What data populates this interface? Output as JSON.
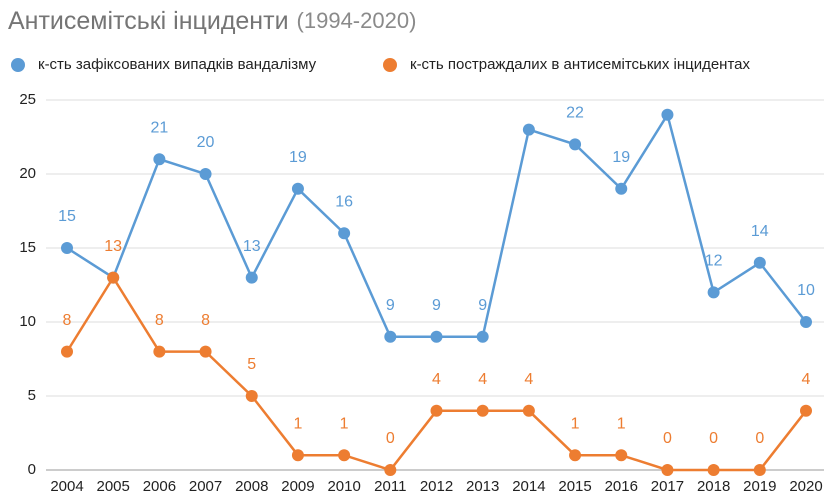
{
  "chart_data": {
    "type": "line",
    "title": "Антисемітські інциденти",
    "subtitle": "(1994-2020)",
    "categories": [
      "2004",
      "2005",
      "2006",
      "2007",
      "2008",
      "2009",
      "2010",
      "2011",
      "2012",
      "2013",
      "2014",
      "2015",
      "2016",
      "2017",
      "2018",
      "2019",
      "2020"
    ],
    "series": [
      {
        "name": "к-сть зафіксованих випадків вандалізму",
        "color": "#5b9bd5",
        "values": [
          15,
          13,
          21,
          20,
          13,
          19,
          16,
          9,
          9,
          9,
          23,
          22,
          19,
          24,
          12,
          14,
          10
        ],
        "value_labels": [
          "15",
          null,
          "21",
          "20",
          "13",
          "19",
          "16",
          "9",
          "9",
          "9",
          null,
          "22",
          "19",
          null,
          "12",
          "14",
          "10"
        ]
      },
      {
        "name": "к-сть постраждалих в антисемітських інцидентах",
        "color": "#ed7d31",
        "values": [
          8,
          13,
          8,
          8,
          5,
          1,
          1,
          0,
          4,
          4,
          4,
          1,
          1,
          0,
          0,
          0,
          4
        ]
      }
    ],
    "ylim": [
      0,
      25
    ],
    "yticks": [
      0,
      5,
      10,
      15,
      20,
      25
    ],
    "grid": true,
    "legend": "top"
  }
}
